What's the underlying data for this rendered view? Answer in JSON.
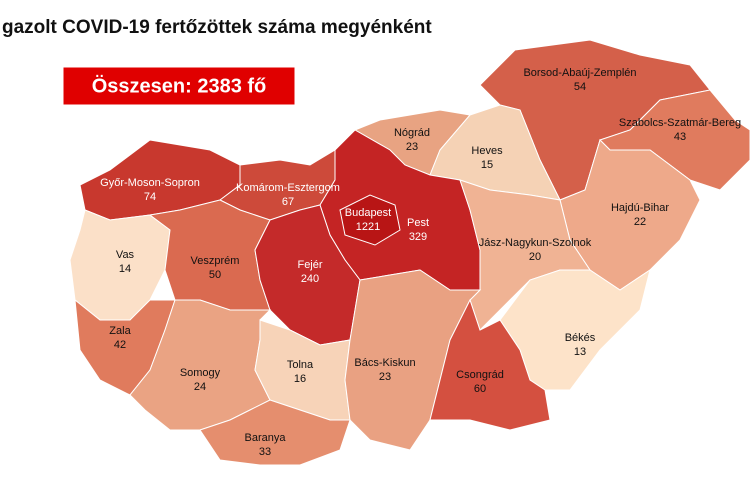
{
  "title": "gazolt COVID-19 fertőzöttek száma megyénként",
  "total": "Összesen: 2383 fő",
  "regions": [
    {
      "name": "Borsod-Abaúj-Zemplén",
      "value": 54,
      "color": "#d4604a"
    },
    {
      "name": "Szabolcs-Szatmár-Bereg",
      "value": 43,
      "color": "#e07b5e"
    },
    {
      "name": "Nógrád",
      "value": 23,
      "color": "#e8a382"
    },
    {
      "name": "Heves",
      "value": 15,
      "color": "#f5d2b5"
    },
    {
      "name": "Győr-Moson-Sopron",
      "value": 74,
      "color": "#c8382e"
    },
    {
      "name": "Komárom-Esztergom",
      "value": 67,
      "color": "#cd4a3a"
    },
    {
      "name": "Budapest",
      "value": 1221,
      "color": "#b81515"
    },
    {
      "name": "Pest",
      "value": 329,
      "color": "#c42424"
    },
    {
      "name": "Hajdú-Bihar",
      "value": 22,
      "color": "#eea98a"
    },
    {
      "name": "Jász-Nagykun-Szolnok",
      "value": 20,
      "color": "#f0b394"
    },
    {
      "name": "Vas",
      "value": 14,
      "color": "#fbe0c8"
    },
    {
      "name": "Veszprém",
      "value": 50,
      "color": "#da6a50"
    },
    {
      "name": "Fejér",
      "value": 240,
      "color": "#c42a2a"
    },
    {
      "name": "Zala",
      "value": 42,
      "color": "#e07b5d"
    },
    {
      "name": "Somogy",
      "value": 24,
      "color": "#eaa383"
    },
    {
      "name": "Tolna",
      "value": 16,
      "color": "#f7d3b8"
    },
    {
      "name": "Bács-Kiskun",
      "value": 23,
      "color": "#e9a182"
    },
    {
      "name": "Békés",
      "value": 13,
      "color": "#fde3c9"
    },
    {
      "name": "Csongrád",
      "value": 60,
      "color": "#d45040"
    },
    {
      "name": "Baranya",
      "value": 33,
      "color": "#e58e6e"
    }
  ]
}
